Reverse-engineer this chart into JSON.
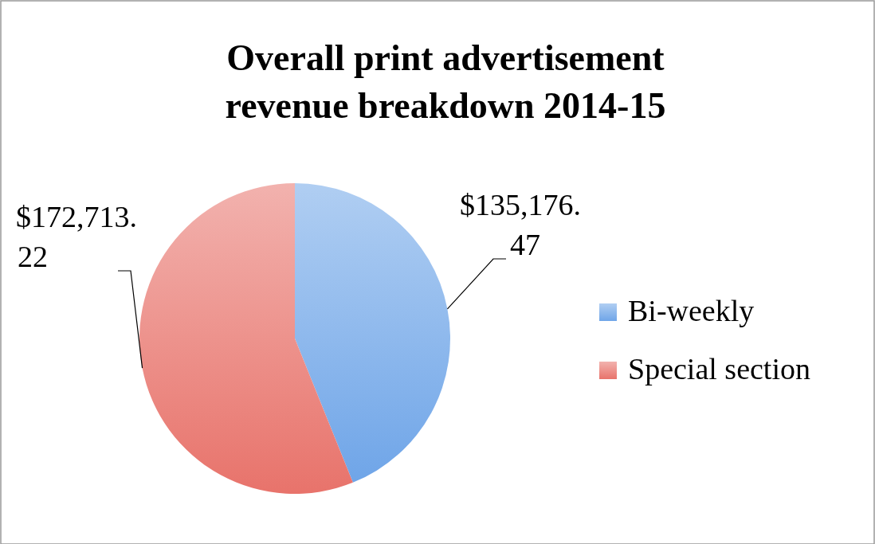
{
  "chart_data": {
    "type": "pie",
    "title": "Overall print advertisement revenue breakdown 2014-15",
    "categories": [
      "Bi-weekly",
      "Special section"
    ],
    "values": [
      135176.47,
      172713.22
    ],
    "colors": [
      "#6fa5e8",
      "#e8736b"
    ],
    "value_labels": [
      "$135,176.47",
      "$172,713.22"
    ],
    "legend": "right"
  }
}
